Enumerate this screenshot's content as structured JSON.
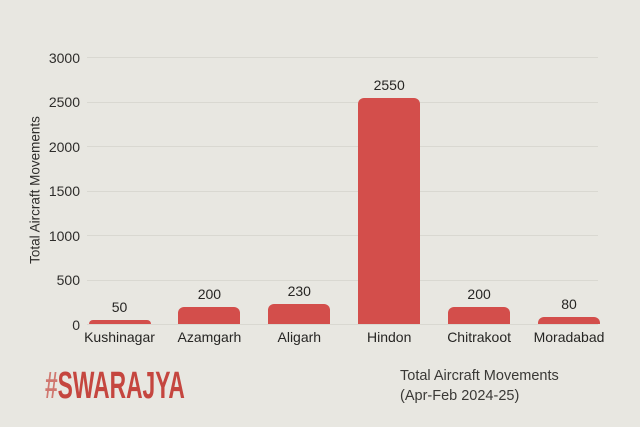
{
  "colors": {
    "background": "#e8e7e1",
    "bar": "#d34e4b",
    "gridline": "#d9d8d1",
    "text": "#2e2d2b",
    "logo_red": "#c5463f",
    "logo_hash_red": "#d0776f"
  },
  "chart_data": {
    "type": "bar",
    "categories": [
      "Kushinagar",
      "Azamgarh",
      "Aligarh",
      "Hindon",
      "Chitrakoot",
      "Moradabad"
    ],
    "values": [
      50,
      200,
      230,
      2550,
      200,
      80
    ],
    "data_labels": [
      "50",
      "200",
      "230",
      "2550",
      "200",
      "80"
    ],
    "title": "",
    "xlabel": "",
    "ylabel": "Total Aircraft Movements",
    "ylim": [
      0,
      3000
    ],
    "yticks": [
      0,
      500,
      1000,
      1500,
      2000,
      2500,
      3000
    ],
    "grid": true,
    "legend": false,
    "bar_color": "#d34e4b"
  },
  "footer": {
    "logo_hash": "#",
    "logo_text": "SWARAJYA",
    "caption_line1": "Total Aircraft Movements",
    "caption_line2": "(Apr-Feb 2024-25)"
  }
}
